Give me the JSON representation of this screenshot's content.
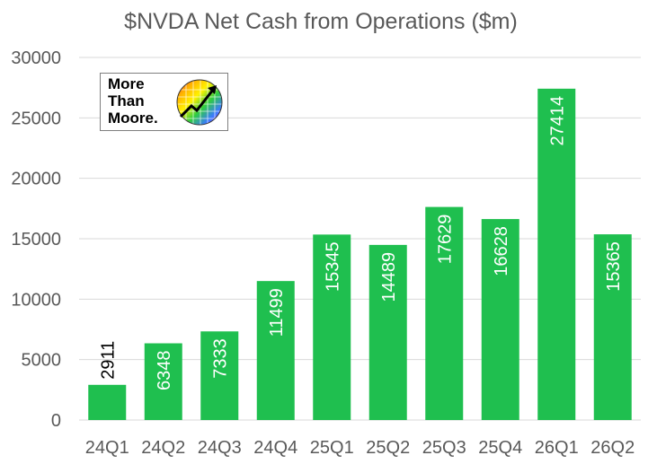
{
  "chart_data": {
    "type": "bar",
    "title": "$NVDA Net Cash from Operations ($m)",
    "categories": [
      "24Q1",
      "24Q2",
      "24Q3",
      "24Q4",
      "25Q1",
      "25Q2",
      "25Q3",
      "25Q4",
      "26Q1",
      "26Q2"
    ],
    "values": [
      2911,
      6348,
      7333,
      11499,
      15345,
      14489,
      17629,
      16628,
      27414,
      15365
    ],
    "data_labels": [
      "2911",
      "6348",
      "7333",
      "11499",
      "15345",
      "14489",
      "17629",
      "16628",
      "27414",
      "15365"
    ],
    "ylim": [
      0,
      30000
    ],
    "yticks": [
      "0",
      "5000",
      "10000",
      "15000",
      "20000",
      "25000",
      "30000"
    ],
    "xlabel": "",
    "ylabel": "",
    "grid": true,
    "bar_color": "#1fbf4f",
    "gridline_color": "#d9d9d9"
  },
  "logo": {
    "line1": "More",
    "line2": "Than",
    "line3": "Moore.",
    "icon": "rainbow-chart-arrow-icon"
  }
}
